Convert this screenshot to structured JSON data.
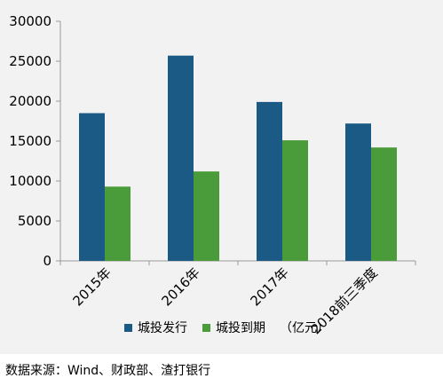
{
  "chart_data": {
    "type": "bar",
    "categories": [
      "2015年",
      "2016年",
      "2017年",
      "2018前三季度"
    ],
    "series": [
      {
        "name": "城投发行",
        "values": [
          18500,
          25700,
          19900,
          17200
        ],
        "color": "#1a5a85"
      },
      {
        "name": "城投到期",
        "values": [
          9300,
          11200,
          15100,
          14200
        ],
        "color": "#4a9b39"
      }
    ],
    "unit_label": "（亿元）",
    "ylim": [
      0,
      30000
    ],
    "yticks": [
      0,
      5000,
      10000,
      15000,
      20000,
      25000,
      30000
    ],
    "grid": false,
    "legend_position": "bottom"
  },
  "source": "数据来源：Wind、财政部、渣打银行"
}
